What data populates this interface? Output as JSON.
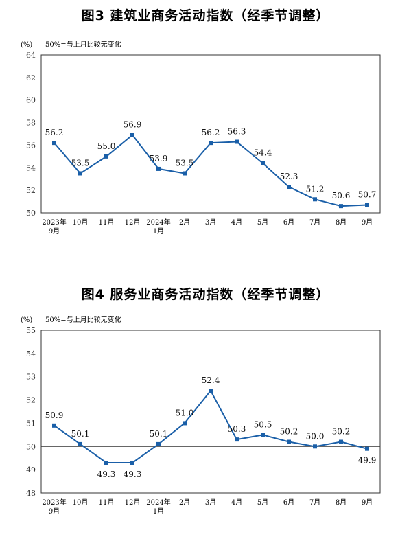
{
  "charts": [
    {
      "title": "图3  建筑业商务活动指数（经季节调整）",
      "unit": "(%)",
      "note": "50%=与上月比较无变化",
      "chart_data": {
        "type": "line",
        "categories": [
          [
            "2023年",
            "9月"
          ],
          [
            "10月"
          ],
          [
            "11月"
          ],
          [
            "12月"
          ],
          [
            "2024年",
            "1月"
          ],
          [
            "2月"
          ],
          [
            "3月"
          ],
          [
            "4月"
          ],
          [
            "5月"
          ],
          [
            "6月"
          ],
          [
            "7月"
          ],
          [
            "8月"
          ],
          [
            "9月"
          ]
        ],
        "values": [
          56.2,
          53.5,
          55.0,
          56.9,
          53.9,
          53.5,
          56.2,
          56.3,
          54.4,
          52.3,
          51.2,
          50.6,
          50.7
        ],
        "value_labels": [
          "56.2",
          "53.5",
          "55.0",
          "56.9",
          "53.9",
          "53.5",
          "56.2",
          "56.3",
          "54.4",
          "52.3",
          "51.2",
          "50.6",
          "50.7"
        ],
        "yticks": [
          "50",
          "52",
          "54",
          "56",
          "58",
          "60",
          "62",
          "64"
        ],
        "ylim": [
          50,
          64
        ],
        "line_color": "#1a5fa8",
        "reference_line": null
      }
    },
    {
      "title": "图4  服务业商务活动指数（经季节调整）",
      "unit": "(%)",
      "note": "50%=与上月比较无变化",
      "chart_data": {
        "type": "line",
        "categories": [
          [
            "2023年",
            "9月"
          ],
          [
            "10月"
          ],
          [
            "11月"
          ],
          [
            "12月"
          ],
          [
            "2024年",
            "1月"
          ],
          [
            "2月"
          ],
          [
            "3月"
          ],
          [
            "4月"
          ],
          [
            "5月"
          ],
          [
            "6月"
          ],
          [
            "7月"
          ],
          [
            "8月"
          ],
          [
            "9月"
          ]
        ],
        "values": [
          50.9,
          50.1,
          49.3,
          49.3,
          50.1,
          51.0,
          52.4,
          50.3,
          50.5,
          50.2,
          50.0,
          50.2,
          49.9
        ],
        "value_labels": [
          "50.9",
          "50.1",
          "49.3",
          "49.3",
          "50.1",
          "51.0",
          "52.4",
          "50.3",
          "50.5",
          "50.2",
          "50.0",
          "50.2",
          "49.9"
        ],
        "yticks": [
          "48",
          "49",
          "50",
          "51",
          "52",
          "53",
          "54",
          "55"
        ],
        "ylim": [
          48,
          55
        ],
        "line_color": "#1a5fa8",
        "reference_line": 50
      }
    }
  ]
}
